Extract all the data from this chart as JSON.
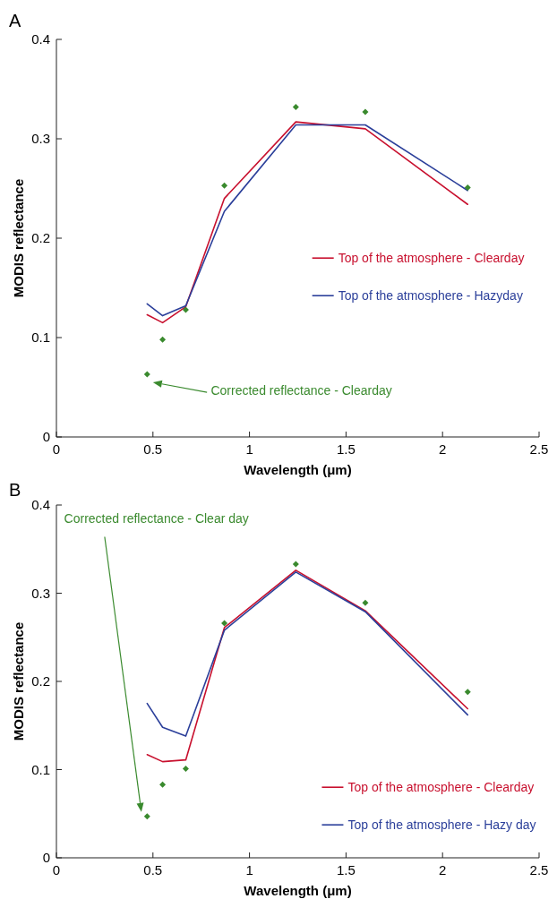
{
  "chart_data": [
    {
      "type": "line",
      "title": "A",
      "xlabel": "Wavelength (μm)",
      "ylabel": "MODIS reflectance",
      "x": [
        0.47,
        0.55,
        0.67,
        0.87,
        1.24,
        1.6,
        2.13
      ],
      "xlim": [
        0,
        2.5
      ],
      "xticks": [
        0,
        0.5,
        1,
        1.5,
        2,
        2.5
      ],
      "ylim": [
        0,
        0.4
      ],
      "yticks": [
        0,
        0.1,
        0.2,
        0.3,
        0.4
      ],
      "grid": false,
      "legend": "right",
      "series": [
        {
          "name": "Top of the atmosphere - Clearday",
          "color": "#c8102e",
          "values": [
            0.123,
            0.115,
            0.131,
            0.24,
            0.317,
            0.31,
            0.234
          ]
        },
        {
          "name": "Top of the atmosphere - Hazyday",
          "color": "#2b3f9a",
          "values": [
            0.134,
            0.122,
            0.132,
            0.227,
            0.314,
            0.314,
            0.248
          ]
        },
        {
          "name": "Corrected reflectance - Clearday",
          "type": "scatter",
          "marker": "diamond",
          "color": "#3a8a2e",
          "values": [
            0.063,
            0.098,
            0.128,
            0.253,
            0.332,
            0.327,
            0.251
          ]
        }
      ]
    },
    {
      "type": "line",
      "title": "B",
      "xlabel": "Wavelength (μm)",
      "ylabel": "MODIS reflectance",
      "x": [
        0.47,
        0.55,
        0.67,
        0.87,
        1.24,
        1.6,
        2.13
      ],
      "xlim": [
        0,
        2.5
      ],
      "xticks": [
        0,
        0.5,
        1,
        1.5,
        2,
        2.5
      ],
      "ylim": [
        0,
        0.4
      ],
      "yticks": [
        0,
        0.1,
        0.2,
        0.3,
        0.4
      ],
      "grid": false,
      "legend": "bottom right",
      "series": [
        {
          "name": "Top of the atmosphere - Clearday",
          "color": "#c8102e",
          "values": [
            0.117,
            0.109,
            0.111,
            0.261,
            0.326,
            0.28,
            0.169
          ]
        },
        {
          "name": "Top of the atmosphere - Hazy day",
          "color": "#2b3f9a",
          "values": [
            0.175,
            0.148,
            0.138,
            0.258,
            0.324,
            0.279,
            0.162
          ]
        },
        {
          "name": "Corrected reflectance - Clear day",
          "type": "scatter",
          "marker": "diamond",
          "color": "#3a8a2e",
          "values": [
            0.047,
            0.083,
            0.101,
            0.266,
            0.333,
            0.289,
            0.188
          ]
        }
      ]
    }
  ]
}
